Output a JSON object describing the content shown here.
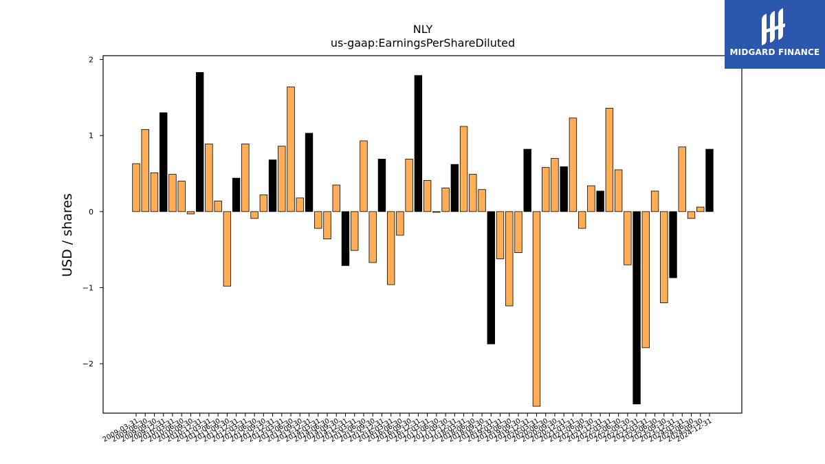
{
  "brand": {
    "name": "MIDGARD FINANCE",
    "bg": "#2b57ad"
  },
  "chart_data": {
    "type": "bar",
    "title": "NLY",
    "subtitle": "us-gaap:EarningsPerShareDiluted",
    "ylabel": "USD / shares",
    "xlabel": "",
    "ylim": [
      -2.65,
      2.05
    ],
    "yticks": [
      -2,
      -1,
      0,
      1,
      2
    ],
    "ytick_labels": [
      "−2",
      "−1",
      "0",
      "1",
      "2"
    ],
    "colors": {
      "quarterly": "#ffae57",
      "annual": "#000000"
    },
    "categories": [
      "2009-03-31",
      "2009-06-30",
      "2009-09-30",
      "2009-12-31",
      "2010-03-31",
      "2010-06-30",
      "2010-09-30",
      "2010-12-31",
      "2011-03-31",
      "2011-06-30",
      "2011-09-30",
      "2011-12-31",
      "2012-03-31",
      "2012-06-30",
      "2012-09-30",
      "2012-12-31",
      "2013-03-31",
      "2013-06-30",
      "2013-09-30",
      "2013-12-31",
      "2014-03-31",
      "2014-06-30",
      "2014-09-30",
      "2014-12-31",
      "2015-03-31",
      "2015-06-30",
      "2015-09-30",
      "2015-12-31",
      "2016-03-31",
      "2016-06-30",
      "2016-09-30",
      "2016-12-31",
      "2017-03-31",
      "2017-06-30",
      "2017-09-30",
      "2017-12-31",
      "2018-03-31",
      "2018-06-30",
      "2018-09-30",
      "2018-12-31",
      "2019-03-31",
      "2019-06-30",
      "2019-09-30",
      "2019-12-31",
      "2020-03-31",
      "2020-06-30",
      "2020-09-30",
      "2020-12-31",
      "2021-03-31",
      "2021-06-30",
      "2021-09-30",
      "2021-12-31",
      "2022-03-31",
      "2022-06-30",
      "2022-09-30",
      "2022-12-31",
      "2023-03-31",
      "2023-06-30",
      "2023-09-30",
      "2023-12-31",
      "2024-03-31",
      "2024-06-30",
      "2024-09-30",
      "2024-12-31"
    ],
    "values": [
      0.63,
      1.08,
      0.51,
      1.3,
      0.49,
      0.4,
      -0.03,
      1.83,
      0.89,
      0.14,
      -0.98,
      0.44,
      0.89,
      -0.09,
      0.22,
      0.68,
      0.86,
      1.64,
      0.18,
      1.03,
      -0.22,
      -0.36,
      0.35,
      -0.71,
      -0.51,
      0.93,
      -0.67,
      0.69,
      -0.96,
      -0.31,
      0.69,
      1.79,
      0.41,
      -0.01,
      0.31,
      0.62,
      1.12,
      0.49,
      0.29,
      -1.74,
      -0.62,
      -1.24,
      -0.54,
      0.82,
      -2.56,
      0.58,
      0.7,
      0.59,
      1.23,
      -0.22,
      0.34,
      0.27,
      1.36,
      0.55,
      -0.7,
      -2.53,
      -1.79,
      0.27,
      -1.2,
      -0.87,
      0.85,
      -0.09,
      0.06,
      0.82
    ],
    "period": [
      "Q",
      "Q",
      "Q",
      "FY",
      "Q",
      "Q",
      "Q",
      "FY",
      "Q",
      "Q",
      "Q",
      "FY",
      "Q",
      "Q",
      "Q",
      "FY",
      "Q",
      "Q",
      "Q",
      "FY",
      "Q",
      "Q",
      "Q",
      "FY",
      "Q",
      "Q",
      "Q",
      "FY",
      "Q",
      "Q",
      "Q",
      "FY",
      "Q",
      "Q",
      "Q",
      "FY",
      "Q",
      "Q",
      "Q",
      "FY",
      "Q",
      "Q",
      "Q",
      "FY",
      "Q",
      "Q",
      "Q",
      "FY",
      "Q",
      "Q",
      "Q",
      "FY",
      "Q",
      "Q",
      "Q",
      "FY",
      "Q",
      "Q",
      "Q",
      "FY",
      "Q",
      "Q",
      "Q",
      "FY"
    ],
    "grid": false,
    "legend": "none"
  }
}
